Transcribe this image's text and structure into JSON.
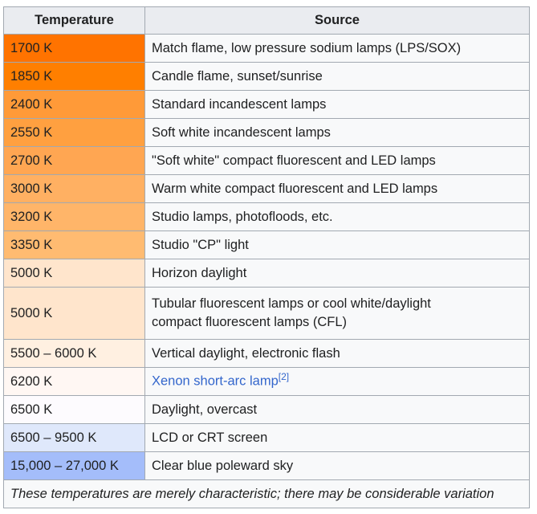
{
  "table": {
    "headers": {
      "temperature": "Temperature",
      "source": "Source"
    },
    "rows": [
      {
        "temp": "1700 K",
        "source": "Match flame, low pressure sodium lamps (LPS/SOX)",
        "color": "#ff7300"
      },
      {
        "temp": "1850 K",
        "source": "Candle flame, sunset/sunrise",
        "color": "#ff7f00"
      },
      {
        "temp": "2400 K",
        "source": "Standard incandescent lamps",
        "color": "#ff9a38"
      },
      {
        "temp": "2550 K",
        "source": "Soft white incandescent lamps",
        "color": "#ffa040"
      },
      {
        "temp": "2700 K",
        "source": "\"Soft white\" compact fluorescent and LED lamps",
        "color": "#ffa652"
      },
      {
        "temp": "3000 K",
        "source": "Warm white compact fluorescent and LED lamps",
        "color": "#ffb062"
      },
      {
        "temp": "3200 K",
        "source": "Studio lamps, photofloods, etc.",
        "color": "#ffb569"
      },
      {
        "temp": "3350 K",
        "source": "Studio \"CP\" light",
        "color": "#ffbb71"
      },
      {
        "temp": "5000 K",
        "source": "Horizon daylight",
        "color": "#ffe5cc"
      },
      {
        "temp": "5000 K",
        "source_line1": "Tubular fluorescent lamps or cool white/daylight",
        "source_line2": "compact fluorescent lamps (CFL)",
        "color": "#ffe5cc"
      },
      {
        "temp": "5500 – 6000 K",
        "source": "Vertical daylight, electronic flash",
        "color": "#fff0e1"
      },
      {
        "temp": "6200 K",
        "source_link": "Xenon short-arc lamp",
        "source_ref": "[2]",
        "color": "#fff7f3"
      },
      {
        "temp": "6500 K",
        "source": "Daylight, overcast",
        "color": "#fdfbfe"
      },
      {
        "temp": "6500 – 9500 K",
        "source": "LCD or CRT screen",
        "color": "#dfe8fb"
      },
      {
        "temp": "15,000 – 27,000 K",
        "source": "Clear blue poleward sky",
        "color": "#a4bdfa"
      }
    ],
    "caption": "These temperatures are merely characteristic; there may be considerable variation"
  }
}
